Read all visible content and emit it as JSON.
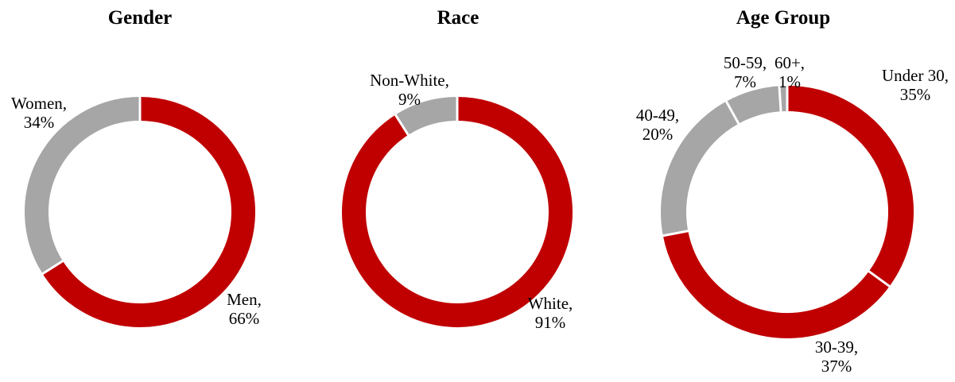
{
  "chart_data": [
    {
      "type": "pie",
      "title": "Gender",
      "slices": [
        {
          "label": "Men",
          "value": 66,
          "color": "#c00000",
          "label_text": [
            "Men,",
            "66%"
          ]
        },
        {
          "label": "Women",
          "value": 34,
          "color": "#a6a6a6",
          "label_text": [
            "Women,",
            "34%"
          ]
        }
      ]
    },
    {
      "type": "pie",
      "title": "Race",
      "slices": [
        {
          "label": "White",
          "value": 91,
          "color": "#c00000",
          "label_text": [
            "White,",
            "91%"
          ]
        },
        {
          "label": "Non-White",
          "value": 9,
          "color": "#a6a6a6",
          "label_text": [
            "Non-White,",
            "9%"
          ]
        }
      ]
    },
    {
      "type": "pie",
      "title": "Age Group",
      "slices": [
        {
          "label": "Under 30",
          "value": 35,
          "color": "#c00000",
          "label_text": [
            "Under 30,",
            "35%"
          ]
        },
        {
          "label": "30-39",
          "value": 37,
          "color": "#c00000",
          "label_text": [
            "30-39,",
            "37%"
          ]
        },
        {
          "label": "40-49",
          "value": 20,
          "color": "#a6a6a6",
          "label_text": [
            "40-49,",
            "20%"
          ]
        },
        {
          "label": "50-59",
          "value": 7,
          "color": "#a6a6a6",
          "label_text": [
            "50-59,",
            "7%"
          ]
        },
        {
          "label": "60+",
          "value": 1,
          "color": "#a6a6a6",
          "label_text": [
            "60+,",
            "1%"
          ]
        }
      ]
    }
  ]
}
